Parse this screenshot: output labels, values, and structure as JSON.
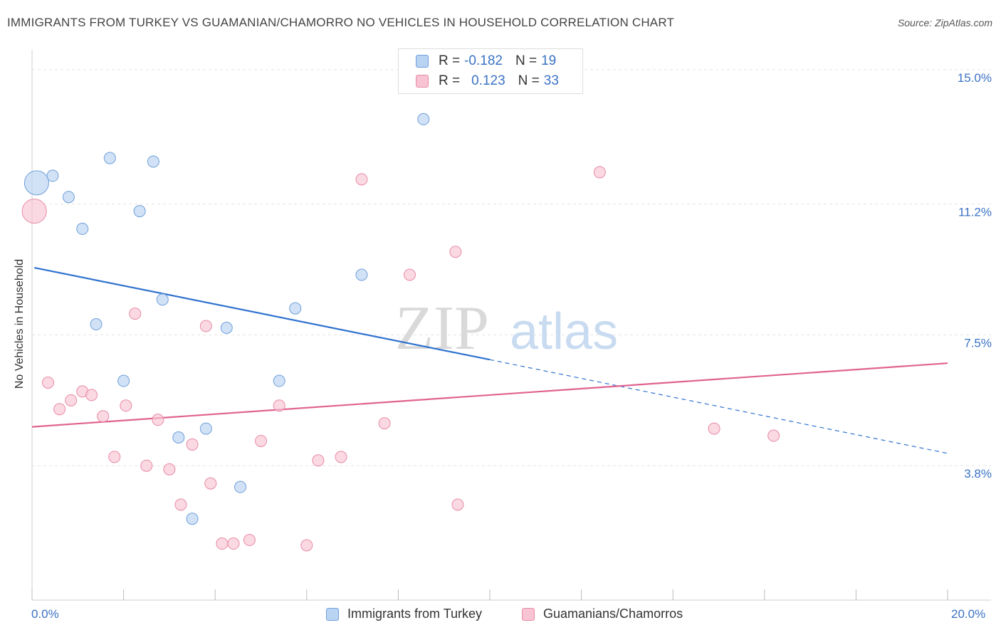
{
  "title": "IMMIGRANTS FROM TURKEY VS GUAMANIAN/CHAMORRO NO VEHICLES IN HOUSEHOLD CORRELATION CHART",
  "source": "Source: ZipAtlas.com",
  "watermark": {
    "zip": "ZIP",
    "atlas": "atlas"
  },
  "colors": {
    "blue_fill": "#b9d3f3",
    "blue_stroke": "#6f9fd8",
    "blue_line": "#2f72cf",
    "pink_fill": "#f8c4d3",
    "pink_stroke": "#e88aa6",
    "pink_line": "#e0638f",
    "axis_label": "#3a72c4",
    "grid": "#e3e3e3"
  },
  "legend_stats": [
    {
      "r_label": "R =",
      "r_value": "-0.182",
      "n_label": "N =",
      "n_value": "19",
      "swatch": "blue"
    },
    {
      "r_label": "R =",
      "r_value": "0.123",
      "n_label": "N =",
      "n_value": "33",
      "swatch": "pink"
    }
  ],
  "chart_data": {
    "type": "scatter",
    "title": "IMMIGRANTS FROM TURKEY VS GUAMANIAN/CHAMORRO NO VEHICLES IN HOUSEHOLD CORRELATION CHART",
    "xlabel": "",
    "ylabel": "No Vehicles in Household",
    "xlim": [
      0,
      20
    ],
    "ylim": [
      0,
      15.4
    ],
    "x_tick_labels": [
      "0.0%",
      "20.0%"
    ],
    "y_ticks": [
      3.8,
      7.5,
      11.2,
      15.0
    ],
    "y_tick_labels": [
      "3.8%",
      "7.5%",
      "11.2%",
      "15.0%"
    ],
    "legend_position": "top-center",
    "series": [
      {
        "name": "Immigrants from Turkey",
        "color": "blue",
        "points": [
          {
            "x": 0.1,
            "y": 11.8,
            "size": "large"
          },
          {
            "x": 0.45,
            "y": 12.0
          },
          {
            "x": 0.8,
            "y": 11.4
          },
          {
            "x": 1.1,
            "y": 10.5
          },
          {
            "x": 1.7,
            "y": 12.5
          },
          {
            "x": 2.65,
            "y": 12.4
          },
          {
            "x": 2.35,
            "y": 11.0
          },
          {
            "x": 2.85,
            "y": 8.5
          },
          {
            "x": 1.4,
            "y": 7.8
          },
          {
            "x": 2.0,
            "y": 6.2
          },
          {
            "x": 3.2,
            "y": 4.6
          },
          {
            "x": 3.8,
            "y": 4.85
          },
          {
            "x": 4.25,
            "y": 7.7
          },
          {
            "x": 5.75,
            "y": 8.25
          },
          {
            "x": 5.4,
            "y": 6.2
          },
          {
            "x": 4.55,
            "y": 3.2
          },
          {
            "x": 3.5,
            "y": 2.3
          },
          {
            "x": 7.2,
            "y": 9.2
          },
          {
            "x": 8.55,
            "y": 13.6
          }
        ],
        "trend": {
          "x0": 0.05,
          "y0": 9.4,
          "x1_solid": 10.0,
          "y1_solid": 6.8,
          "x1": 20.0,
          "y1": 4.15
        }
      },
      {
        "name": "Guamanians/Chamorros",
        "color": "pink",
        "points": [
          {
            "x": 0.05,
            "y": 11.0,
            "size": "large"
          },
          {
            "x": 0.35,
            "y": 6.15
          },
          {
            "x": 0.6,
            "y": 5.4
          },
          {
            "x": 0.85,
            "y": 5.65
          },
          {
            "x": 1.1,
            "y": 5.9
          },
          {
            "x": 1.3,
            "y": 5.8
          },
          {
            "x": 1.55,
            "y": 5.2
          },
          {
            "x": 2.05,
            "y": 5.5
          },
          {
            "x": 1.8,
            "y": 4.05
          },
          {
            "x": 2.25,
            "y": 8.1
          },
          {
            "x": 2.5,
            "y": 3.8
          },
          {
            "x": 2.75,
            "y": 5.1
          },
          {
            "x": 3.0,
            "y": 3.7
          },
          {
            "x": 3.25,
            "y": 2.7
          },
          {
            "x": 3.5,
            "y": 4.4
          },
          {
            "x": 3.8,
            "y": 7.75
          },
          {
            "x": 3.9,
            "y": 3.3
          },
          {
            "x": 4.15,
            "y": 1.6
          },
          {
            "x": 4.4,
            "y": 1.6
          },
          {
            "x": 4.75,
            "y": 1.7
          },
          {
            "x": 5.0,
            "y": 4.5
          },
          {
            "x": 5.4,
            "y": 5.5
          },
          {
            "x": 6.0,
            "y": 1.55
          },
          {
            "x": 6.25,
            "y": 3.95
          },
          {
            "x": 6.75,
            "y": 4.05
          },
          {
            "x": 7.2,
            "y": 11.9
          },
          {
            "x": 7.7,
            "y": 5.0
          },
          {
            "x": 8.25,
            "y": 9.2
          },
          {
            "x": 9.25,
            "y": 9.85
          },
          {
            "x": 9.3,
            "y": 2.7
          },
          {
            "x": 12.4,
            "y": 12.1
          },
          {
            "x": 14.9,
            "y": 4.85
          },
          {
            "x": 16.2,
            "y": 4.65
          }
        ],
        "trend": {
          "x0": 0.0,
          "y0": 4.9,
          "x1": 20.0,
          "y1": 6.7
        }
      }
    ]
  },
  "bottom_legend": [
    {
      "label": "Immigrants from Turkey",
      "swatch": "blue"
    },
    {
      "label": "Guamanians/Chamorros",
      "swatch": "pink"
    }
  ]
}
